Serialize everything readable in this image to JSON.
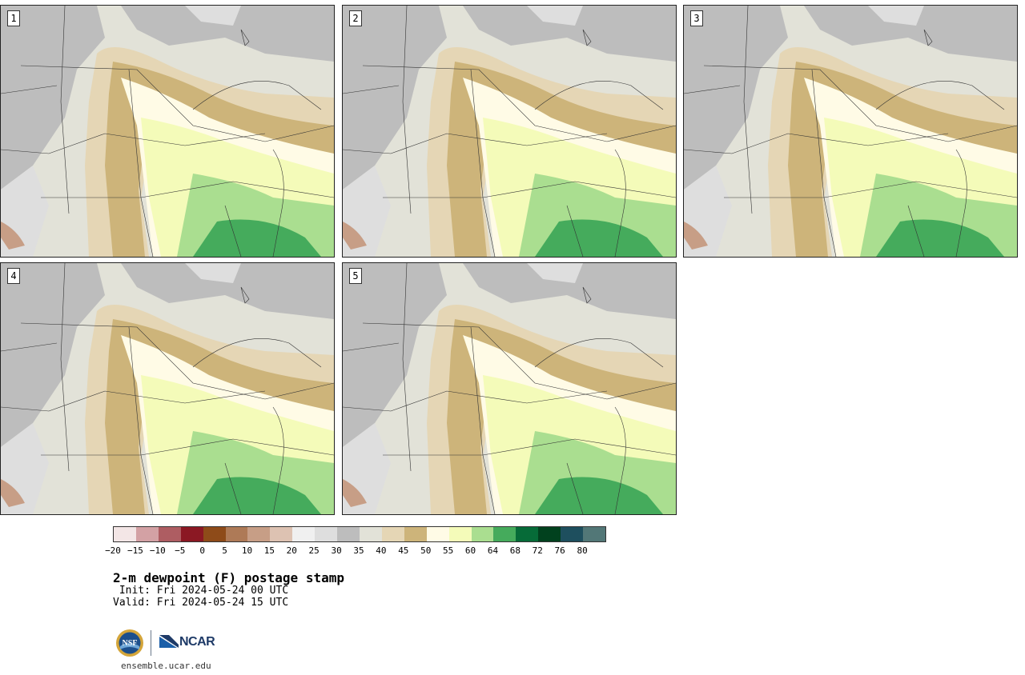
{
  "panels": [
    {
      "number": "1"
    },
    {
      "number": "2"
    },
    {
      "number": "3"
    },
    {
      "number": "4"
    },
    {
      "number": "5"
    }
  ],
  "colorbar": {
    "colors": [
      "#f3e6e6",
      "#d3a1a4",
      "#ae5d62",
      "#8b1823",
      "#8e4b19",
      "#ae7a57",
      "#c79e86",
      "#ddc2b2",
      "#f0f0f0",
      "#dedede",
      "#bdbdbd",
      "#e2e2d8",
      "#e5d6b5",
      "#cdb47a",
      "#fffbe6",
      "#f4fbb9",
      "#aade90",
      "#45ab5c",
      "#066b38",
      "#01411e",
      "#1e4f5e",
      "#527777"
    ],
    "ticks": [
      "−20",
      "−15",
      "−10",
      "−5",
      "0",
      "5",
      "10",
      "15",
      "20",
      "25",
      "30",
      "35",
      "40",
      "45",
      "50",
      "55",
      "60",
      "64",
      "68",
      "72",
      "76",
      "80"
    ]
  },
  "title": "2-m dewpoint (F) postage stamp",
  "init": " Init: Fri 2024-05-24 00 UTC",
  "valid": "Valid: Fri 2024-05-24 15 UTC",
  "logos": {
    "ncar": "NCAR",
    "nsf": "NSF"
  },
  "site": "ensemble.ucar.edu"
}
